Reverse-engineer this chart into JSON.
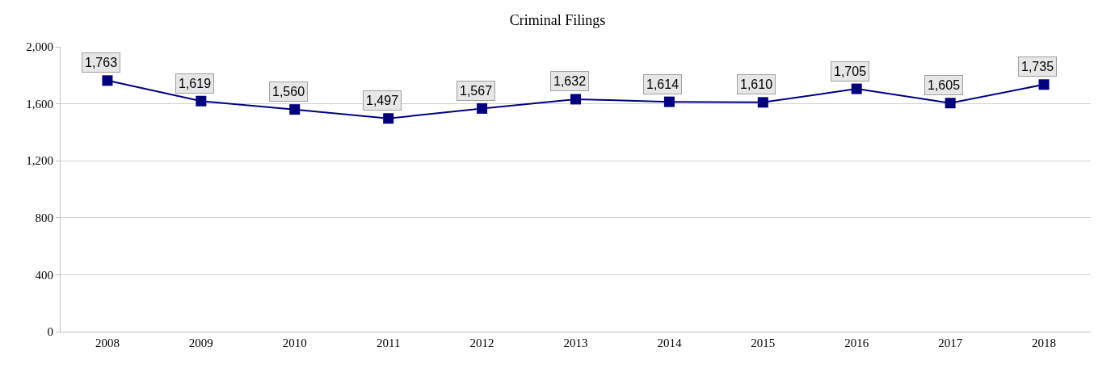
{
  "chart_data": {
    "type": "line",
    "title": "Criminal Filings",
    "categories": [
      "2008",
      "2009",
      "2010",
      "2011",
      "2012",
      "2013",
      "2014",
      "2015",
      "2016",
      "2017",
      "2018"
    ],
    "series": [
      {
        "color": "#000080",
        "values": [
          1763,
          1619,
          1560,
          1497,
          1567,
          1632,
          1614,
          1610,
          1705,
          1605,
          1735
        ],
        "value_labels": [
          "1,763",
          "1,619",
          "1,560",
          "1,497",
          "1,567",
          "1,632",
          "1,614",
          "1,610",
          "1,705",
          "1,605",
          "1,735"
        ]
      }
    ],
    "ylim": [
      0,
      2000
    ],
    "yticks": [
      {
        "value": 0,
        "label": "0"
      },
      {
        "value": 400,
        "label": "400"
      },
      {
        "value": 800,
        "label": "800"
      },
      {
        "value": 1200,
        "label": "1,200"
      },
      {
        "value": 1600,
        "label": "1,600"
      },
      {
        "value": 2000,
        "label": "2,000"
      }
    ],
    "grid": "y",
    "marker": "square",
    "line_style": "solid"
  }
}
